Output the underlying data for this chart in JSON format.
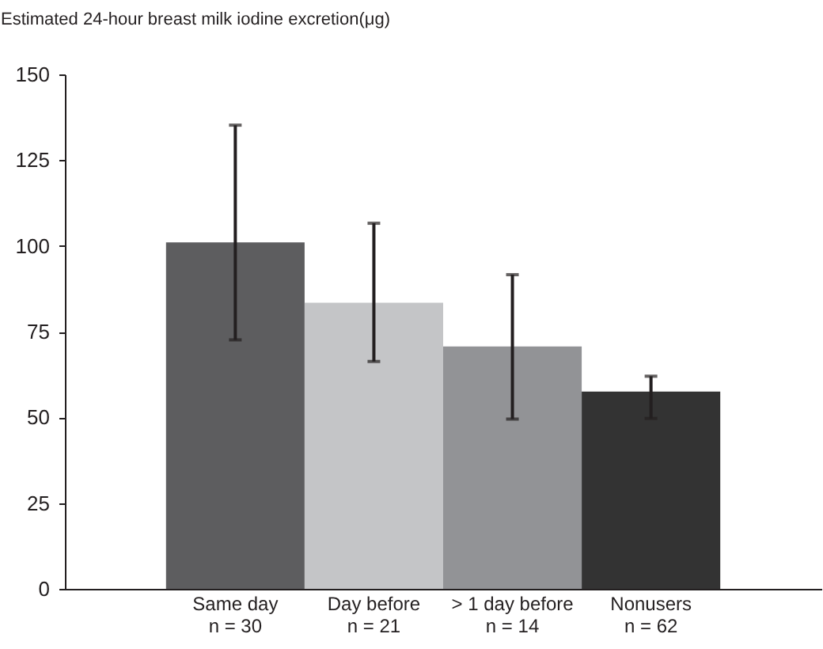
{
  "chart_data": {
    "type": "bar",
    "ylabel": "Estimated 24-hour breast milk iodine excretion(μg)",
    "categories": [
      "Same day\nn = 30",
      "Day before\nn = 21",
      "> 1 day before\nn = 14",
      "Nonusers\nn = 62"
    ],
    "values": [
      101,
      83.4,
      70.7,
      57.5
    ],
    "colors": [
      "#5d5d5f",
      "#c4c5c7",
      "#929396",
      "#333333"
    ],
    "errors": [
      [
        72.6,
        135.2
      ],
      [
        66.3,
        106.6
      ],
      [
        49.5,
        91.6
      ],
      [
        49.7,
        62
      ]
    ],
    "ylim": [
      0,
      150
    ],
    "yticks": [
      0,
      25,
      50,
      75,
      100,
      125,
      150
    ],
    "grid": false
  }
}
